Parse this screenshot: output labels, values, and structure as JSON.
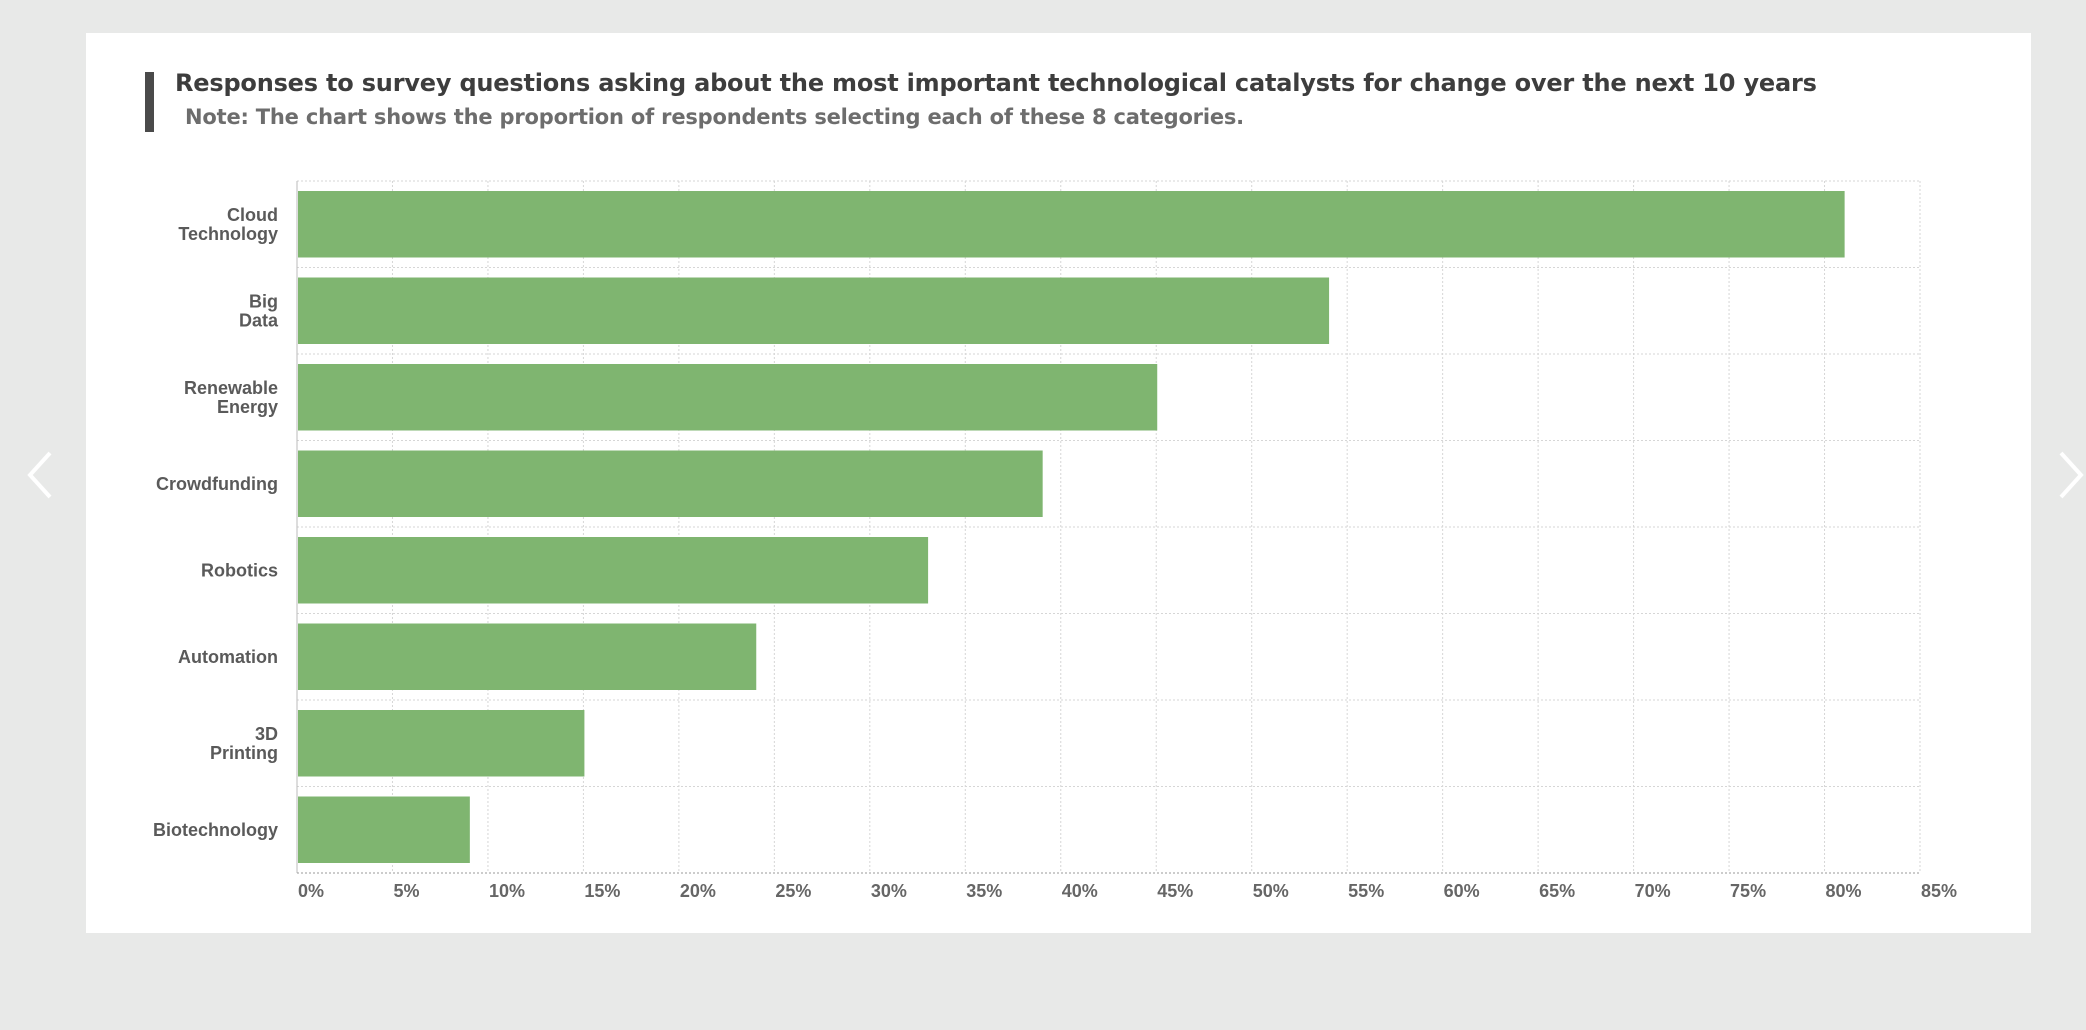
{
  "chart_data": {
    "type": "bar",
    "orientation": "horizontal",
    "title": "Responses to survey questions asking about the most important technological catalysts for change over the next 10 years",
    "subtitle": "Note: The chart shows the proportion of respondents selecting each of these 8 categories.",
    "categories": [
      [
        "Cloud",
        "Technology"
      ],
      [
        "Big",
        "Data"
      ],
      [
        "Renewable",
        "Energy"
      ],
      [
        "Crowdfunding"
      ],
      [
        "Robotics"
      ],
      [
        "Automation"
      ],
      [
        "3D",
        "Printing"
      ],
      [
        "Biotechnology"
      ]
    ],
    "values": [
      81,
      54,
      45,
      39,
      33,
      24,
      15,
      9
    ],
    "xlim": [
      0,
      85
    ],
    "xticks": [
      "0%",
      "5%",
      "10%",
      "15%",
      "20%",
      "25%",
      "30%",
      "35%",
      "40%",
      "45%",
      "50%",
      "55%",
      "60%",
      "65%",
      "70%",
      "75%",
      "80%",
      "85%"
    ],
    "tick_step": 5,
    "grid": true,
    "bar_color": "#7fb570"
  },
  "nav": {
    "prev_icon": "chevron-left-icon",
    "next_icon": "chevron-right-icon"
  }
}
